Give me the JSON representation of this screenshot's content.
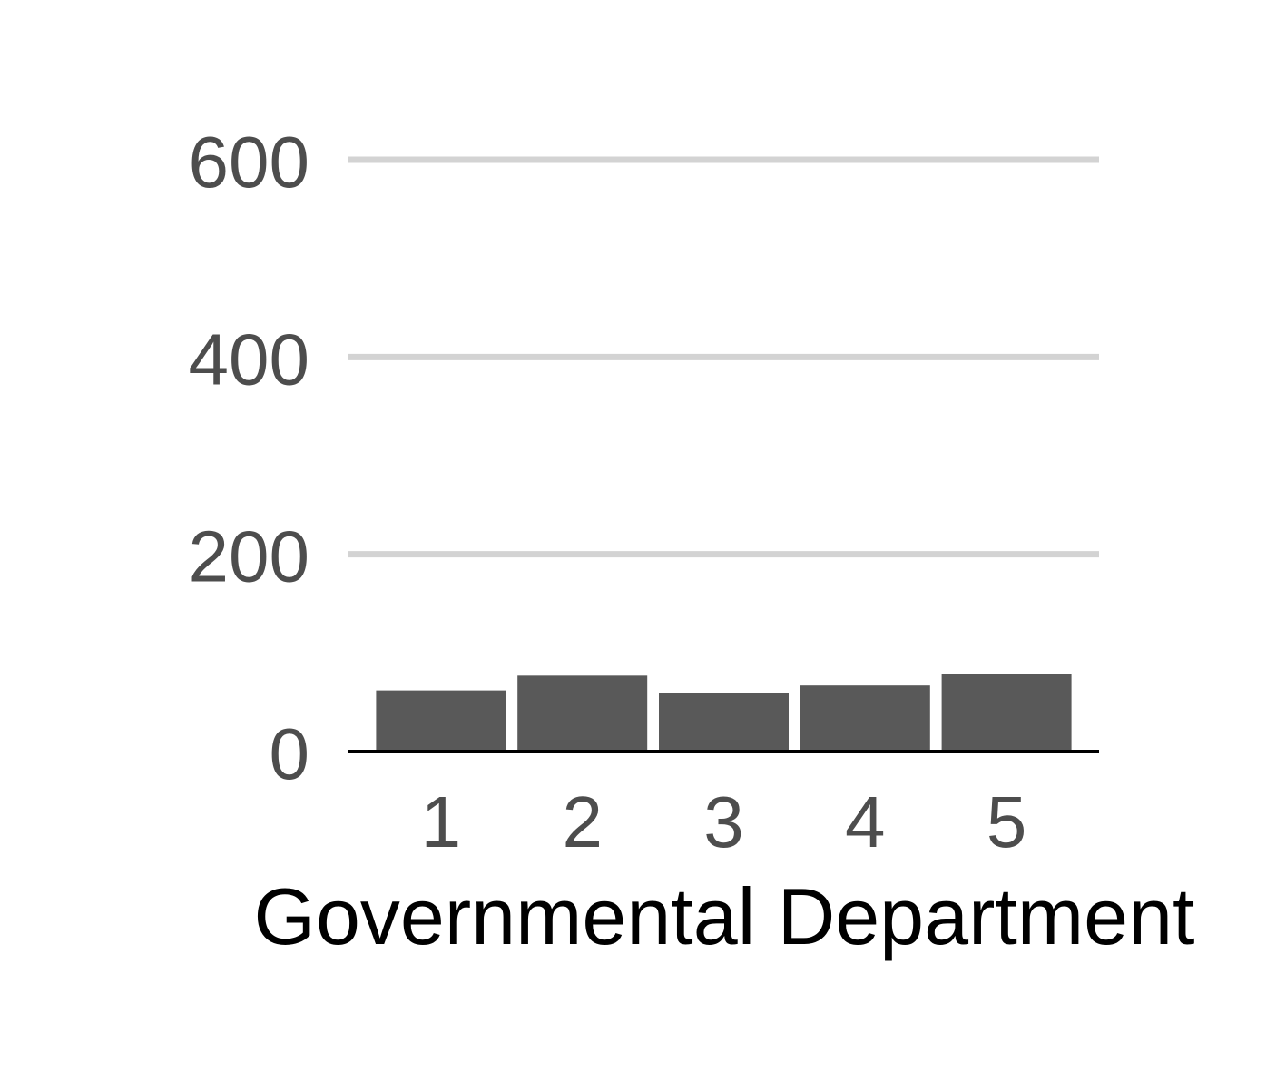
{
  "chart_data": {
    "type": "bar",
    "title": "",
    "xlabel": "Governmental Department",
    "ylabel": "",
    "categories": [
      "1",
      "2",
      "3",
      "4",
      "5"
    ],
    "values": [
      62,
      77,
      59,
      67,
      79
    ],
    "ylim": [
      0,
      600
    ],
    "yticks": [
      0,
      200,
      400,
      600
    ],
    "ytick_labels": [
      "0",
      "200",
      "400",
      "600"
    ],
    "grid": "horizontal",
    "legend": "none",
    "colors": {
      "bar": "#595959",
      "grid": "#d3d3d3",
      "baseline": "#000000",
      "tick_text": "#4d4d4d",
      "title_text": "#000000"
    }
  }
}
